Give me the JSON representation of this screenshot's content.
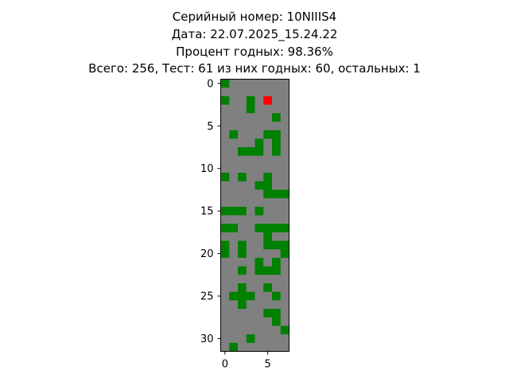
{
  "chart_data": {
    "type": "heatmap",
    "title_lines": [
      "Серийный номер: 10NIIIS4",
      "Дата: 22.07.2025_15.24.22",
      "Процент годных: 98.36%",
      "Всего: 256, Тест: 61 из них годных: 60, остальных: 1"
    ],
    "n_rows": 32,
    "n_cols": 8,
    "x_ticks": [
      0,
      5
    ],
    "y_ticks": [
      0,
      5,
      10,
      15,
      20,
      25,
      30
    ],
    "x_tick_labels": [
      "0",
      "5"
    ],
    "y_tick_labels": [
      "0",
      "5",
      "10",
      "15",
      "20",
      "25",
      "30"
    ],
    "colors": {
      "untested": "#808080",
      "good": "#008000",
      "bad": "#ff0000"
    },
    "good_cells": [
      [
        0,
        0
      ],
      [
        2,
        0
      ],
      [
        2,
        3
      ],
      [
        3,
        3
      ],
      [
        4,
        6
      ],
      [
        6,
        1
      ],
      [
        6,
        5
      ],
      [
        6,
        6
      ],
      [
        7,
        4
      ],
      [
        7,
        6
      ],
      [
        8,
        2
      ],
      [
        8,
        3
      ],
      [
        8,
        4
      ],
      [
        8,
        6
      ],
      [
        11,
        0
      ],
      [
        11,
        2
      ],
      [
        11,
        5
      ],
      [
        12,
        4
      ],
      [
        12,
        5
      ],
      [
        13,
        5
      ],
      [
        13,
        6
      ],
      [
        13,
        7
      ],
      [
        15,
        0
      ],
      [
        15,
        1
      ],
      [
        15,
        2
      ],
      [
        15,
        4
      ],
      [
        17,
        0
      ],
      [
        17,
        1
      ],
      [
        17,
        4
      ],
      [
        17,
        5
      ],
      [
        17,
        6
      ],
      [
        17,
        7
      ],
      [
        18,
        5
      ],
      [
        19,
        0
      ],
      [
        19,
        2
      ],
      [
        19,
        5
      ],
      [
        19,
        6
      ],
      [
        19,
        7
      ],
      [
        20,
        0
      ],
      [
        20,
        2
      ],
      [
        20,
        7
      ],
      [
        21,
        4
      ],
      [
        21,
        6
      ],
      [
        22,
        2
      ],
      [
        22,
        4
      ],
      [
        22,
        5
      ],
      [
        22,
        6
      ],
      [
        24,
        2
      ],
      [
        24,
        5
      ],
      [
        25,
        1
      ],
      [
        25,
        2
      ],
      [
        25,
        3
      ],
      [
        25,
        6
      ],
      [
        26,
        2
      ],
      [
        27,
        5
      ],
      [
        27,
        6
      ],
      [
        28,
        6
      ],
      [
        29,
        7
      ],
      [
        30,
        3
      ],
      [
        31,
        1
      ]
    ],
    "bad_cells": [
      [
        2,
        5
      ]
    ]
  }
}
